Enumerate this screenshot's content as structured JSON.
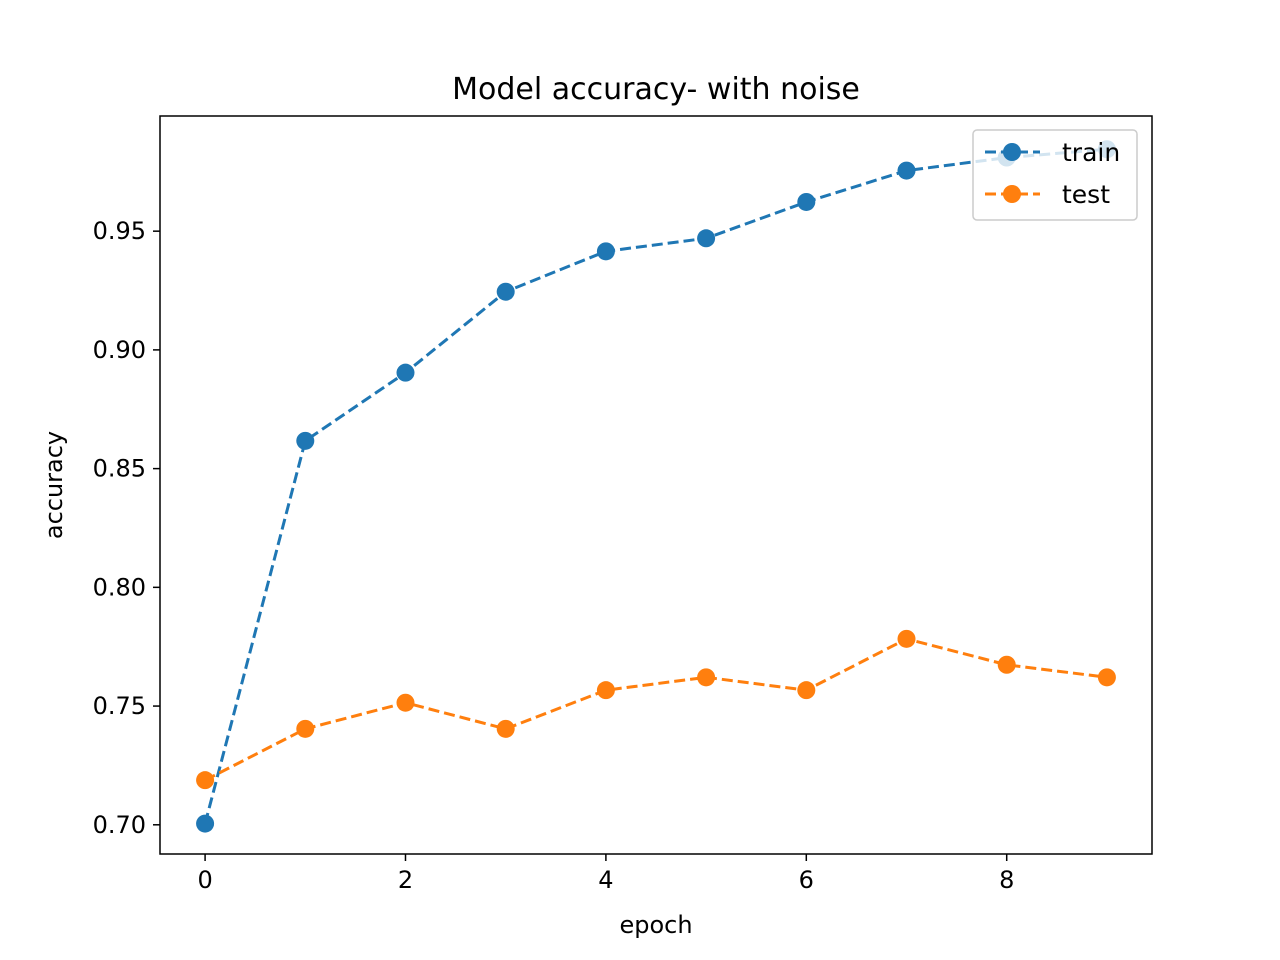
{
  "chart_data": {
    "type": "line",
    "title": "Model accuracy- with noise",
    "xlabel": "epoch",
    "ylabel": "accuracy",
    "x": [
      0,
      1,
      2,
      3,
      4,
      5,
      6,
      7,
      8,
      9
    ],
    "xlim": [
      -0.45,
      9.45
    ],
    "ylim": [
      0.6877,
      0.9985
    ],
    "xticks": [
      0,
      2,
      4,
      6,
      8
    ],
    "xtick_labels": [
      "0",
      "2",
      "4",
      "6",
      "8"
    ],
    "yticks": [
      0.7,
      0.75,
      0.8,
      0.85,
      0.9,
      0.95
    ],
    "ytick_labels": [
      "0.70",
      "0.75",
      "0.80",
      "0.85",
      "0.90",
      "0.95"
    ],
    "grid": false,
    "legend_position": "top-right",
    "series": [
      {
        "name": "train",
        "color": "#1f77b4",
        "line_style": "dashed",
        "marker": "circle",
        "values": [
          0.7005,
          0.8617,
          0.8904,
          0.9245,
          0.9415,
          0.947,
          0.9623,
          0.9755,
          0.981,
          0.9845
        ]
      },
      {
        "name": "test",
        "color": "#ff7f0e",
        "line_style": "dashed",
        "marker": "circle",
        "values": [
          0.7188,
          0.7404,
          0.7514,
          0.7404,
          0.7567,
          0.7621,
          0.7567,
          0.7783,
          0.7674,
          0.7621
        ]
      }
    ]
  }
}
